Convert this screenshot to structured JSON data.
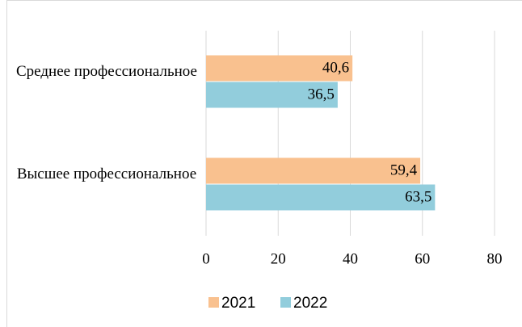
{
  "chart_data": {
    "type": "barh",
    "categories": [
      "Среднее профессиональное",
      "Высшее профессиональное"
    ],
    "series": [
      {
        "name": "2021",
        "color": "#f9c18f",
        "values": [
          40.6,
          59.4
        ],
        "value_labels": [
          "40,6",
          "59,4"
        ]
      },
      {
        "name": "2022",
        "color": "#92cddc",
        "values": [
          36.5,
          63.5
        ],
        "value_labels": [
          "36,5",
          "63,5"
        ]
      }
    ],
    "xlim": [
      0,
      80
    ],
    "xticks": [
      0,
      20,
      40,
      60,
      80
    ],
    "grid": true,
    "legend": "bottom"
  }
}
